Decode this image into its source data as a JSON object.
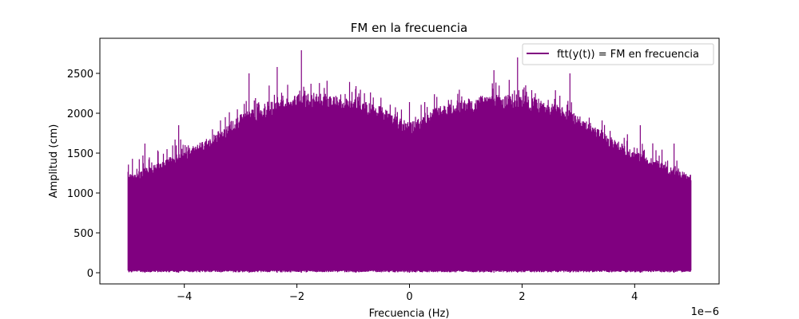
{
  "chart_data": {
    "type": "line",
    "title": "FM en la frecuencia",
    "xlabel": "Frecuencia (Hz)",
    "ylabel": "Amplitud (cm)",
    "x_offset_label": "1e−6",
    "x_scale": 1e-06,
    "xlim": [
      -5.5,
      5.5
    ],
    "ylim": [
      -140,
      2940
    ],
    "x_range_of_data": [
      -5.0,
      5.0
    ],
    "xticks": [
      -4,
      -2,
      0,
      2,
      4
    ],
    "xtick_labels": [
      "−4",
      "−2",
      "0",
      "2",
      "4"
    ],
    "yticks": [
      0,
      500,
      1000,
      1500,
      2000,
      2500
    ],
    "ytick_labels": [
      "0",
      "500",
      "1000",
      "1500",
      "2000",
      "2500"
    ],
    "grid": false,
    "legend_position": "top-right",
    "series": [
      {
        "name": "ftt(y(t)) = FM en frecuencia",
        "color": "#800080",
        "baseline": 0,
        "envelope_x": [
          -5.0,
          -4.5,
          -4.0,
          -3.5,
          -3.0,
          -2.5,
          -2.0,
          -1.5,
          -1.0,
          -0.5,
          0.0,
          0.5,
          1.0,
          1.5,
          2.0,
          2.5,
          3.0,
          3.5,
          4.0,
          4.5,
          5.0
        ],
        "envelope_y": [
          1200,
          1350,
          1500,
          1700,
          1950,
          2100,
          2200,
          2200,
          2150,
          2050,
          1850,
          2050,
          2150,
          2200,
          2200,
          2100,
          1950,
          1700,
          1500,
          1350,
          1200
        ],
        "peaks": [
          {
            "x": -1.92,
            "y": 2790
          },
          {
            "x": 1.92,
            "y": 2700
          },
          {
            "x": -2.85,
            "y": 2500
          },
          {
            "x": -2.35,
            "y": 2580
          },
          {
            "x": -0.95,
            "y": 2340
          },
          {
            "x": 0.0,
            "y": 2140
          },
          {
            "x": 1.5,
            "y": 2540
          },
          {
            "x": 2.85,
            "y": 2500
          },
          {
            "x": -4.1,
            "y": 1850
          },
          {
            "x": 4.1,
            "y": 1850
          },
          {
            "x": -4.7,
            "y": 1620
          },
          {
            "x": 4.7,
            "y": 1620
          }
        ]
      }
    ]
  }
}
